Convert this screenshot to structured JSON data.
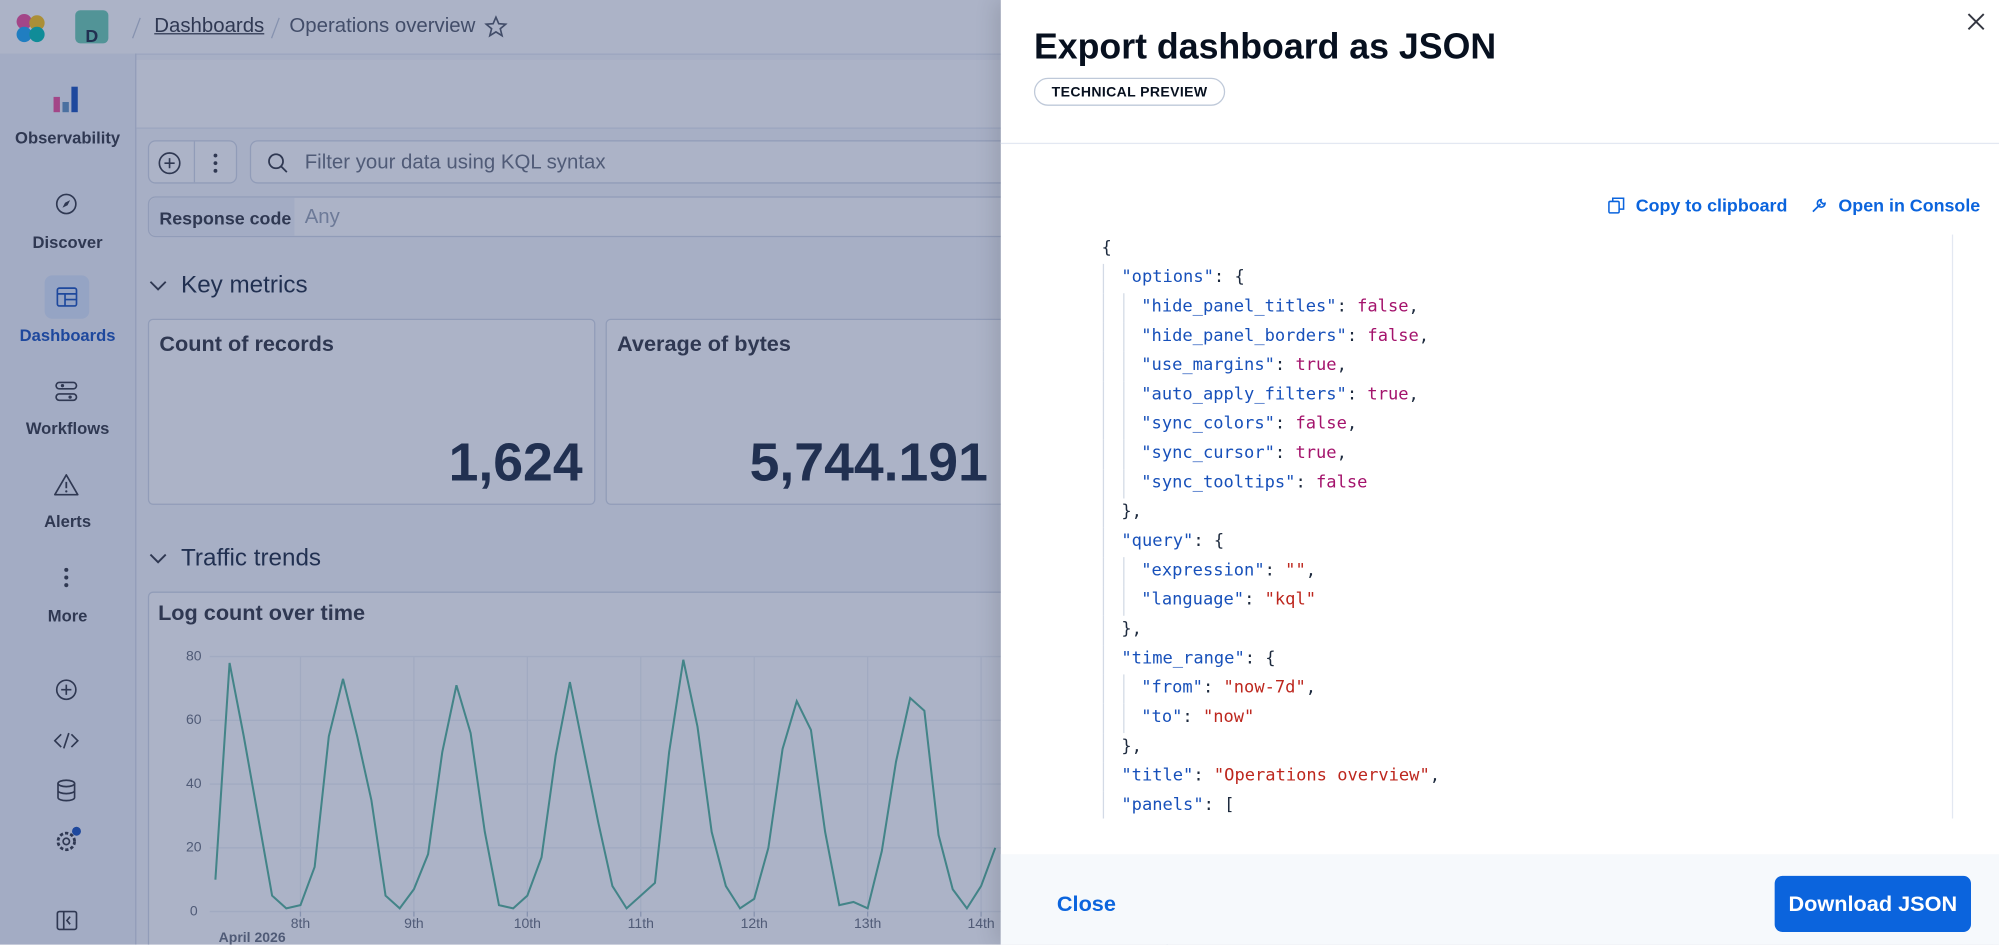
{
  "header": {
    "space_initial": "D",
    "breadcrumbs": [
      "Dashboards",
      "Operations overview"
    ]
  },
  "sidebar": {
    "items": [
      "Observability",
      "Discover",
      "Dashboards",
      "Workflows",
      "Alerts",
      "More"
    ]
  },
  "query_bar": {
    "placeholder": "Filter your data using KQL syntax"
  },
  "filter_control": {
    "label": "Response code",
    "placeholder": "Any"
  },
  "sections": [
    {
      "title": "Key metrics",
      "panels": [
        {
          "title": "Count of records",
          "value": "1,624"
        },
        {
          "title": "Average of bytes",
          "value": "5,744.191"
        }
      ]
    },
    {
      "title": "Traffic trends"
    }
  ],
  "chart_data": {
    "type": "line",
    "title": "Log count over time",
    "x_caption": "April 2026",
    "color": "#54b399",
    "x": [
      7.25,
      7.375,
      7.5,
      7.625,
      7.75,
      7.875,
      8.0,
      8.125,
      8.25,
      8.375,
      8.5,
      8.625,
      8.75,
      8.875,
      9.0,
      9.125,
      9.25,
      9.375,
      9.5,
      9.625,
      9.75,
      9.875,
      10.0,
      10.125,
      10.25,
      10.375,
      10.5,
      10.625,
      10.75,
      10.875,
      11.0,
      11.125,
      11.25,
      11.375,
      11.5,
      11.625,
      11.75,
      11.875,
      12.0,
      12.125,
      12.25,
      12.375,
      12.5,
      12.625,
      12.75,
      12.875,
      13.0,
      13.125,
      13.25,
      13.375,
      13.5,
      13.625,
      13.75,
      13.875,
      14.0,
      14.125
    ],
    "values": [
      10,
      78,
      55,
      30,
      5,
      1,
      2,
      14,
      55,
      73,
      55,
      35,
      5,
      1,
      7,
      18,
      50,
      71,
      56,
      25,
      2,
      1,
      5,
      17,
      49,
      72,
      50,
      28,
      8,
      1,
      5,
      9,
      50,
      79,
      58,
      25,
      8,
      1,
      4,
      20,
      51,
      66,
      57,
      25,
      2,
      3,
      1,
      19,
      47,
      67,
      63,
      24,
      7,
      1,
      8,
      20
    ],
    "xlim": [
      7.2,
      15.5
    ],
    "xticks": [
      {
        "value": 8,
        "label": "8th"
      },
      {
        "value": 9,
        "label": "9th"
      },
      {
        "value": 10,
        "label": "10th"
      },
      {
        "value": 11,
        "label": "11th"
      },
      {
        "value": 12,
        "label": "12th"
      },
      {
        "value": 13,
        "label": "13th"
      },
      {
        "value": 14,
        "label": "14th"
      }
    ],
    "ylim": [
      0,
      80
    ],
    "yticks": [
      0,
      20,
      40,
      60,
      80
    ],
    "grid": true
  },
  "flyout": {
    "title": "Export dashboard as JSON",
    "badge": "TECHNICAL PREVIEW",
    "actions": [
      "Copy to clipboard",
      "Open in Console"
    ],
    "token_colors": {
      "key": "#1750ba",
      "bool": "#a4136c",
      "string": "#bd271e",
      "punct": "#1d2a3e"
    },
    "code": [
      {
        "depth": 0,
        "tokens": [
          {
            "t": "{",
            "k": "punct"
          }
        ]
      },
      {
        "depth": 1,
        "tokens": [
          {
            "t": "\"options\"",
            "k": "key"
          },
          {
            "t": ": {",
            "k": "punct"
          }
        ]
      },
      {
        "depth": 2,
        "tokens": [
          {
            "t": "\"hide_panel_titles\"",
            "k": "key"
          },
          {
            "t": ": ",
            "k": "punct"
          },
          {
            "t": "false",
            "k": "bool"
          },
          {
            "t": ",",
            "k": "punct"
          }
        ]
      },
      {
        "depth": 2,
        "tokens": [
          {
            "t": "\"hide_panel_borders\"",
            "k": "key"
          },
          {
            "t": ": ",
            "k": "punct"
          },
          {
            "t": "false",
            "k": "bool"
          },
          {
            "t": ",",
            "k": "punct"
          }
        ]
      },
      {
        "depth": 2,
        "tokens": [
          {
            "t": "\"use_margins\"",
            "k": "key"
          },
          {
            "t": ": ",
            "k": "punct"
          },
          {
            "t": "true",
            "k": "bool"
          },
          {
            "t": ",",
            "k": "punct"
          }
        ]
      },
      {
        "depth": 2,
        "tokens": [
          {
            "t": "\"auto_apply_filters\"",
            "k": "key"
          },
          {
            "t": ": ",
            "k": "punct"
          },
          {
            "t": "true",
            "k": "bool"
          },
          {
            "t": ",",
            "k": "punct"
          }
        ]
      },
      {
        "depth": 2,
        "tokens": [
          {
            "t": "\"sync_colors\"",
            "k": "key"
          },
          {
            "t": ": ",
            "k": "punct"
          },
          {
            "t": "false",
            "k": "bool"
          },
          {
            "t": ",",
            "k": "punct"
          }
        ]
      },
      {
        "depth": 2,
        "tokens": [
          {
            "t": "\"sync_cursor\"",
            "k": "key"
          },
          {
            "t": ": ",
            "k": "punct"
          },
          {
            "t": "true",
            "k": "bool"
          },
          {
            "t": ",",
            "k": "punct"
          }
        ]
      },
      {
        "depth": 2,
        "tokens": [
          {
            "t": "\"sync_tooltips\"",
            "k": "key"
          },
          {
            "t": ": ",
            "k": "punct"
          },
          {
            "t": "false",
            "k": "bool"
          }
        ]
      },
      {
        "depth": 1,
        "tokens": [
          {
            "t": "},",
            "k": "punct"
          }
        ]
      },
      {
        "depth": 1,
        "tokens": [
          {
            "t": "\"query\"",
            "k": "key"
          },
          {
            "t": ": {",
            "k": "punct"
          }
        ]
      },
      {
        "depth": 2,
        "tokens": [
          {
            "t": "\"expression\"",
            "k": "key"
          },
          {
            "t": ": ",
            "k": "punct"
          },
          {
            "t": "\"\"",
            "k": "string"
          },
          {
            "t": ",",
            "k": "punct"
          }
        ]
      },
      {
        "depth": 2,
        "tokens": [
          {
            "t": "\"language\"",
            "k": "key"
          },
          {
            "t": ": ",
            "k": "punct"
          },
          {
            "t": "\"kql\"",
            "k": "string"
          }
        ]
      },
      {
        "depth": 1,
        "tokens": [
          {
            "t": "},",
            "k": "punct"
          }
        ]
      },
      {
        "depth": 1,
        "tokens": [
          {
            "t": "\"time_range\"",
            "k": "key"
          },
          {
            "t": ": {",
            "k": "punct"
          }
        ]
      },
      {
        "depth": 2,
        "tokens": [
          {
            "t": "\"from\"",
            "k": "key"
          },
          {
            "t": ": ",
            "k": "punct"
          },
          {
            "t": "\"now-7d\"",
            "k": "string"
          },
          {
            "t": ",",
            "k": "punct"
          }
        ]
      },
      {
        "depth": 2,
        "tokens": [
          {
            "t": "\"to\"",
            "k": "key"
          },
          {
            "t": ": ",
            "k": "punct"
          },
          {
            "t": "\"now\"",
            "k": "string"
          }
        ]
      },
      {
        "depth": 1,
        "tokens": [
          {
            "t": "},",
            "k": "punct"
          }
        ]
      },
      {
        "depth": 1,
        "tokens": [
          {
            "t": "\"title\"",
            "k": "key"
          },
          {
            "t": ": ",
            "k": "punct"
          },
          {
            "t": "\"Operations overview\"",
            "k": "string"
          },
          {
            "t": ",",
            "k": "punct"
          }
        ]
      },
      {
        "depth": 1,
        "tokens": [
          {
            "t": "\"panels\"",
            "k": "key"
          },
          {
            "t": ": [",
            "k": "punct"
          }
        ]
      }
    ],
    "footer": {
      "close": "Close",
      "primary": "Download JSON"
    }
  }
}
